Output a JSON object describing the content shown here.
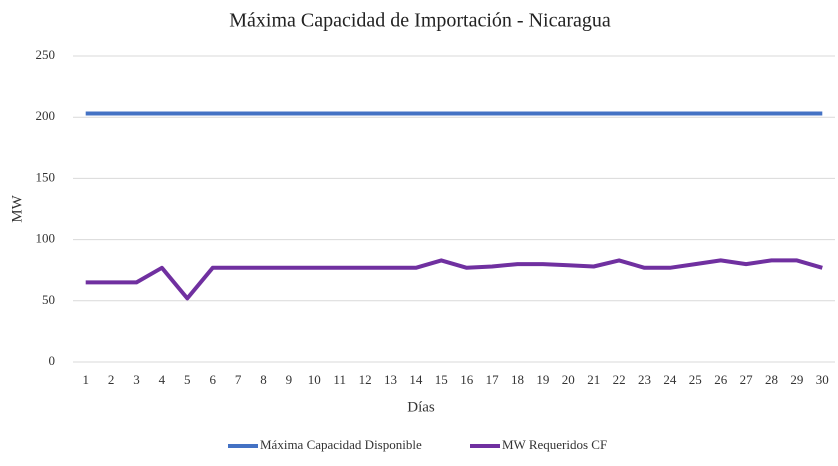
{
  "chart_data": {
    "type": "line",
    "title": "Máxima Capacidad de Importación - Nicaragua",
    "x_label": "Días",
    "y_label": "MW",
    "categories": [
      "1",
      "2",
      "3",
      "4",
      "5",
      "6",
      "7",
      "8",
      "9",
      "10",
      "11",
      "12",
      "13",
      "14",
      "15",
      "16",
      "17",
      "18",
      "19",
      "20",
      "21",
      "22",
      "23",
      "24",
      "25",
      "26",
      "27",
      "28",
      "29",
      "30"
    ],
    "series": [
      {
        "name": "Máxima Capacidad Disponible",
        "color": "#4472c4",
        "values": [
          203,
          203,
          203,
          203,
          203,
          203,
          203,
          203,
          203,
          203,
          203,
          203,
          203,
          203,
          203,
          203,
          203,
          203,
          203,
          203,
          203,
          203,
          203,
          203,
          203,
          203,
          203,
          203,
          203,
          203
        ]
      },
      {
        "name": "MW Requeridos CF",
        "color": "#7030a0",
        "values": [
          65,
          65,
          65,
          77,
          52,
          77,
          77,
          77,
          77,
          77,
          77,
          77,
          77,
          77,
          83,
          77,
          78,
          80,
          80,
          79,
          78,
          83,
          77,
          77,
          80,
          83,
          80,
          83,
          83,
          77
        ]
      }
    ],
    "ylim": [
      0,
      250
    ],
    "yticks": [
      0,
      50,
      100,
      150,
      200,
      250
    ],
    "grid": true,
    "legend": "bottom"
  }
}
